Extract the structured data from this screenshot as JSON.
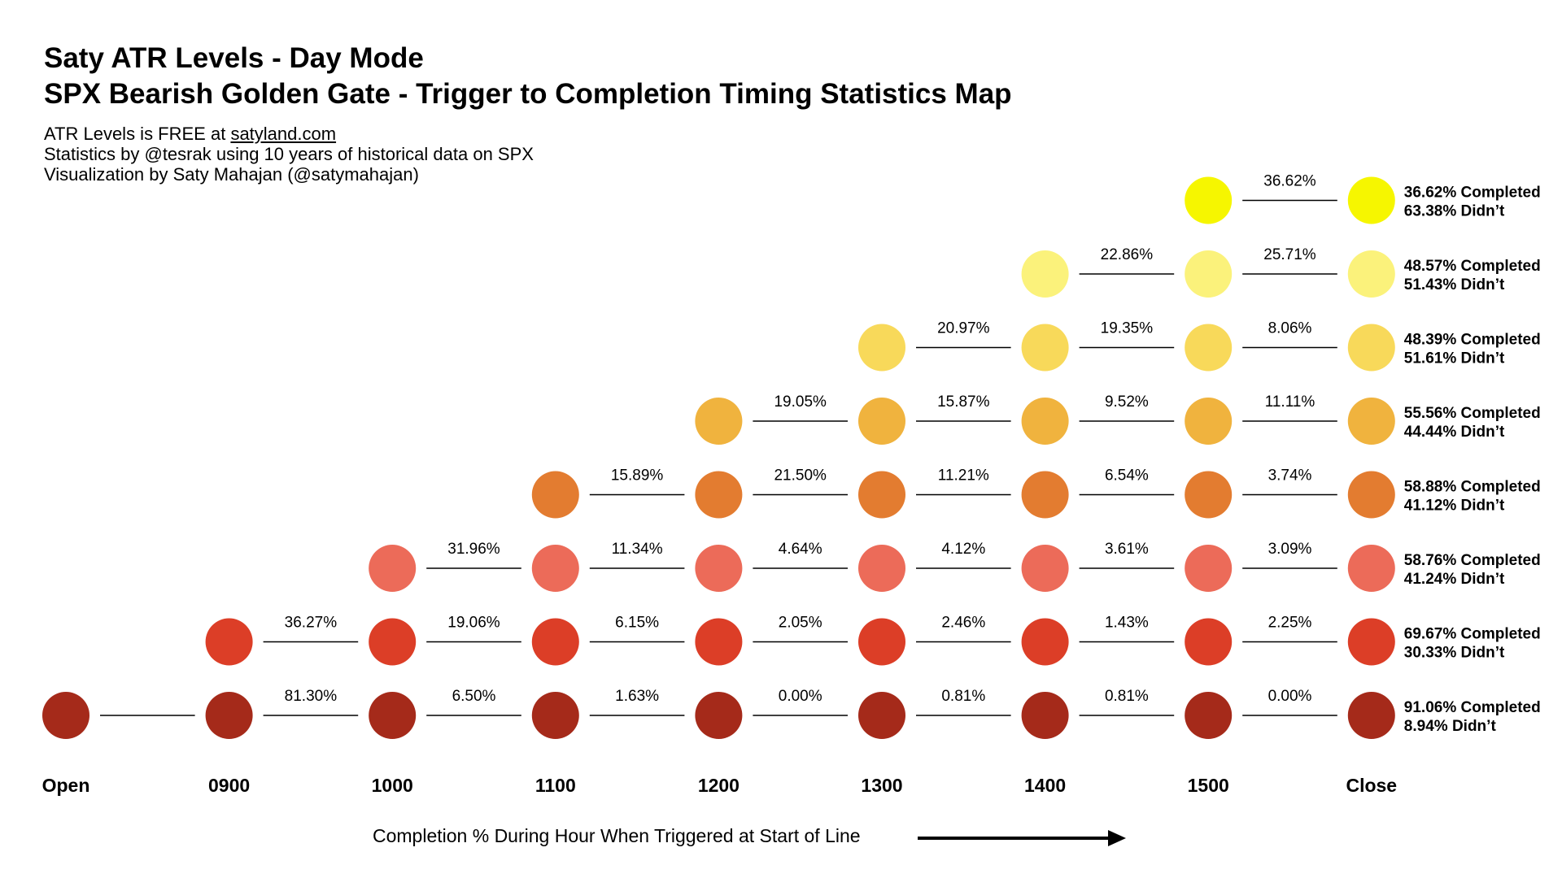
{
  "header": {
    "title1": "Saty ATR Levels - Day Mode",
    "title2": "SPX Bearish Golden Gate - Trigger to Completion Timing Statistics Map",
    "sub1_prefix": "ATR Levels is FREE at ",
    "sub1_link": "satyland.com",
    "sub2": "Statistics by @tesrak using 10 years of historical data on SPX",
    "sub3": "Visualization by Saty Mahajan (@satymahajan)"
  },
  "chart_data": {
    "type": "scatter",
    "columns": [
      "Open",
      "0900",
      "1000",
      "1100",
      "1200",
      "1300",
      "1400",
      "1500",
      "Close"
    ],
    "rows": [
      {
        "start_col": 0,
        "color": "#a52a1a",
        "segments": [
          "",
          "81.30%",
          "6.50%",
          "1.63%",
          "0.00%",
          "0.81%",
          "0.81%",
          "0.00%"
        ],
        "completed": "91.06% Completed",
        "didnt": "8.94% Didn’t"
      },
      {
        "start_col": 1,
        "color": "#dc3e27",
        "segments": [
          "36.27%",
          "19.06%",
          "6.15%",
          "2.05%",
          "2.46%",
          "1.43%",
          "2.25%"
        ],
        "completed": "69.67% Completed",
        "didnt": "30.33% Didn’t"
      },
      {
        "start_col": 2,
        "color": "#ec6b59",
        "segments": [
          "31.96%",
          "11.34%",
          "4.64%",
          "4.12%",
          "3.61%",
          "3.09%"
        ],
        "completed": "58.76% Completed",
        "didnt": "41.24% Didn’t"
      },
      {
        "start_col": 3,
        "color": "#e37c30",
        "segments": [
          "15.89%",
          "21.50%",
          "11.21%",
          "6.54%",
          "3.74%"
        ],
        "completed": "58.88% Completed",
        "didnt": "41.12% Didn’t"
      },
      {
        "start_col": 4,
        "color": "#f0b33e",
        "segments": [
          "19.05%",
          "15.87%",
          "9.52%",
          "11.11%"
        ],
        "completed": "55.56% Completed",
        "didnt": "44.44% Didn’t"
      },
      {
        "start_col": 5,
        "color": "#f8d95a",
        "segments": [
          "20.97%",
          "19.35%",
          "8.06%"
        ],
        "completed": "48.39% Completed",
        "didnt": "51.61% Didn’t"
      },
      {
        "start_col": 6,
        "color": "#fbf27b",
        "segments": [
          "22.86%",
          "25.71%"
        ],
        "completed": "48.57% Completed",
        "didnt": "51.43% Didn’t"
      },
      {
        "start_col": 7,
        "color": "#f6f600",
        "segments": [
          "36.62%"
        ],
        "completed": "36.62% Completed",
        "didnt": "63.38% Didn’t"
      }
    ],
    "xlabel": "Completion % During Hour When Triggered at Start of Line"
  }
}
